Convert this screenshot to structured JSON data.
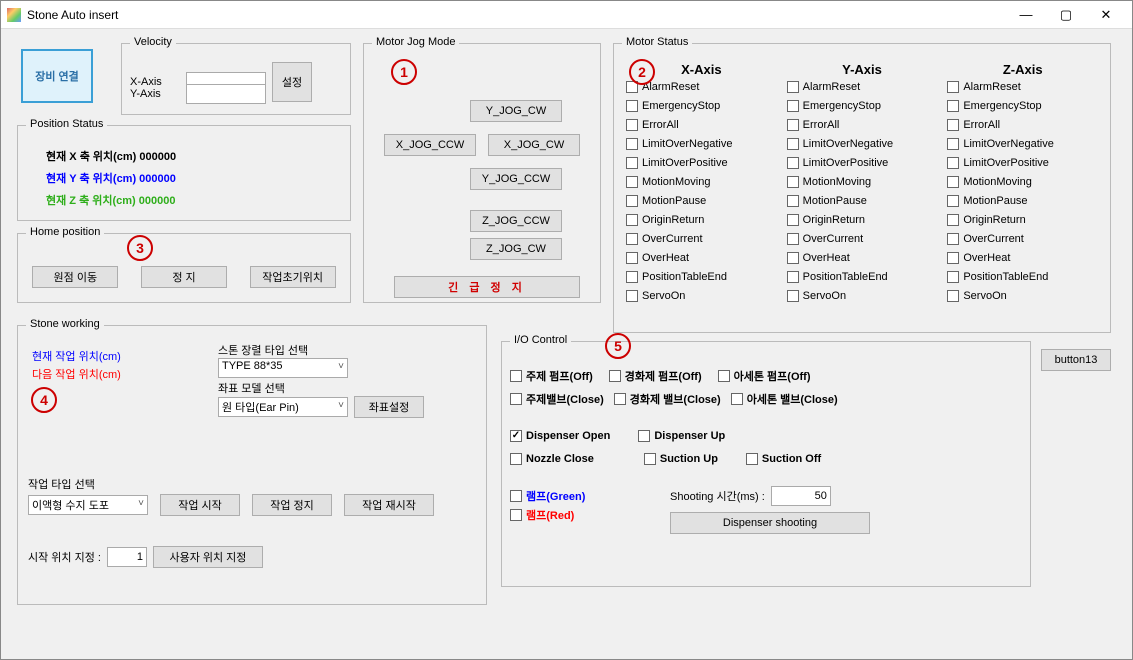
{
  "window": {
    "title": "Stone Auto insert"
  },
  "colors": {
    "blue": "#0000ff",
    "red": "#ff0000",
    "green": "#2eae1a",
    "emergency_red": "#d00000"
  },
  "connect": {
    "label": "장비 연결",
    "bg": "#dff2fb",
    "border": "#3a9fd6"
  },
  "velocity": {
    "legend": "Velocity",
    "x_label": "X-Axis",
    "y_label": "Y-Axis",
    "set_btn": "설정"
  },
  "position_status": {
    "legend": "Position Status",
    "x": "현재 X 축 위치(cm)  000000",
    "y": "현재 Y 축 위치(cm)  000000",
    "z": "현재 Z 축 위치(cm)  000000"
  },
  "home": {
    "legend": "Home position",
    "b1": "원점 이동",
    "b2": "정 지",
    "b3": "작업초기위치"
  },
  "jog": {
    "legend": "Motor Jog Mode",
    "y_cw": "Y_JOG_CW",
    "x_ccw": "X_JOG_CCW",
    "x_cw": "X_JOG_CW",
    "y_ccw": "Y_JOG_CCW",
    "z_ccw": "Z_JOG_CCW",
    "z_cw": "Z_JOG_CW",
    "estop": "긴  급  정  지"
  },
  "motor_status": {
    "legend": "Motor Status",
    "cols": [
      "X-Axis",
      "Y-Axis",
      "Z-Axis"
    ],
    "items": [
      "AlarmReset",
      "EmergencyStop",
      "ErrorAll",
      "LimitOverNegative",
      "LimitOverPositive",
      "MotionMoving",
      "MotionPause",
      "OriginReturn",
      "OverCurrent",
      "OverHeat",
      "PositionTableEnd",
      "ServoOn"
    ]
  },
  "stone": {
    "legend": "Stone working",
    "cur": "현재 작업 위치(cm)",
    "next": "다음 작업 위치(cm)",
    "type_label": "스톤 장렬 타입 선택",
    "type_value": "TYPE 88*35",
    "model_label": "좌표 모델 선택",
    "model_value": "원 타입(Ear Pin)",
    "coord_btn": "좌표설정",
    "work_type_label": "작업 타입 선택",
    "work_type_value": "이액형 수지 도포",
    "start": "작업 시작",
    "stop": "작업 정지",
    "restart": "작업 재시작",
    "startpos_label": "시작 위치 지정  :",
    "startpos_value": "1",
    "userpos_btn": "사용자 위치 지정"
  },
  "io": {
    "legend": "I/O Control",
    "row1": [
      "주제 펌프(Off)",
      "경화제 펌프(Off)",
      "아세톤 펌프(Off)"
    ],
    "row2": [
      "주제밸브(Close)",
      "경화제 밸브(Close)",
      "아세톤 밸브(Close)"
    ],
    "disp_open": "Dispenser Open",
    "disp_up": "Dispenser Up",
    "nozzle": "Nozzle Close",
    "suction_up": "Suction Up",
    "suction_off": "Suction Off",
    "lamp_g": "램프(Green)",
    "lamp_r": "램프(Red)",
    "shoot_label": "Shooting 시간(ms)  :",
    "shoot_val": "50",
    "shoot_btn": "Dispenser shooting"
  },
  "button13": "button13",
  "annot": {
    "1": "1",
    "2": "2",
    "3": "3",
    "4": "4",
    "5": "5"
  }
}
